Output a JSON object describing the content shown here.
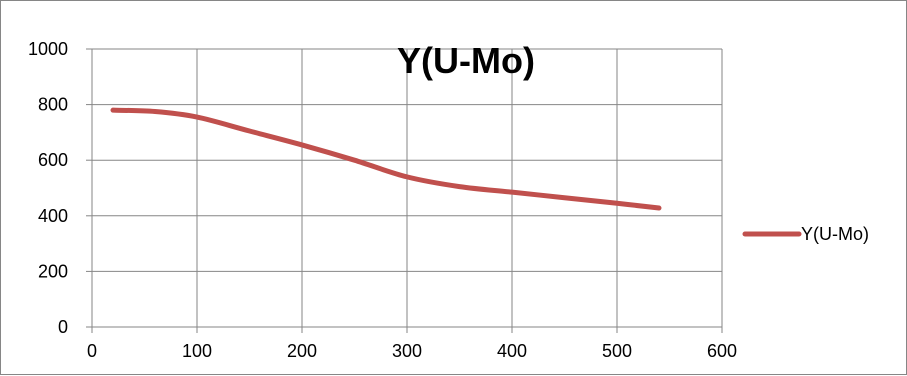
{
  "chart_data": {
    "type": "line",
    "title": "Y(U-Mo)",
    "xlabel": "",
    "ylabel": "",
    "xlim": [
      0,
      600
    ],
    "ylim": [
      0,
      1000
    ],
    "x_ticks": [
      0,
      100,
      200,
      300,
      400,
      500,
      600
    ],
    "y_ticks": [
      0,
      200,
      400,
      600,
      800,
      1000
    ],
    "grid": true,
    "legend_position": "right",
    "series": [
      {
        "name": "Y(U-Mo)",
        "color": "#C0504D",
        "smooth": true,
        "x": [
          20,
          60,
          100,
          150,
          200,
          250,
          300,
          350,
          400,
          450,
          500,
          540
        ],
        "y": [
          780,
          775,
          755,
          705,
          655,
          600,
          540,
          505,
          485,
          465,
          445,
          428
        ]
      }
    ]
  }
}
